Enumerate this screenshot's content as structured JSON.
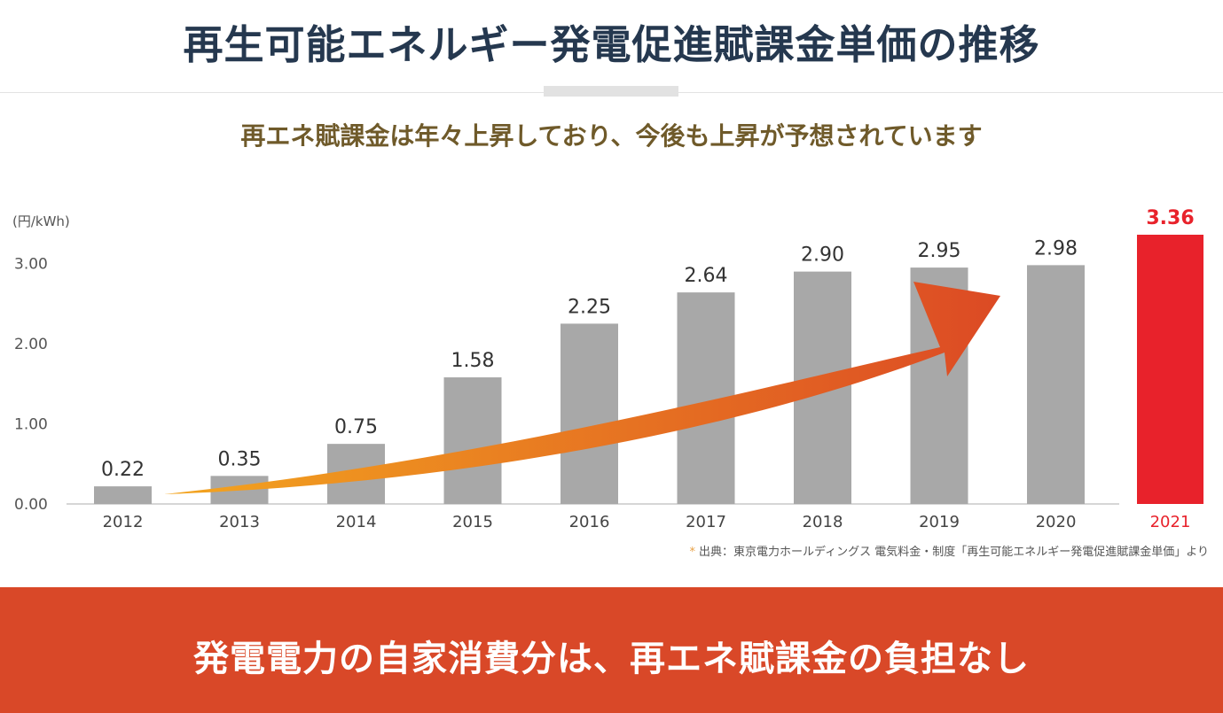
{
  "title": "再生可能エネルギー発電促進賦課金単価の推移",
  "subtitle": "再エネ賦課金は年々上昇しており、今後も上昇が予想されています",
  "source_mark": "*",
  "source_text": "出典：東京電力ホールディングス 電気料金・制度「再生可能エネルギー発電促進賦課金単価」より",
  "banner": "発電電力の自家消費分は、再エネ賦課金の負担なし",
  "colors": {
    "title": "#25384f",
    "subtitle": "#6f5a2a",
    "bar": "#a8a8a8",
    "highlight_bar": "#e8222b",
    "banner": "#d94828",
    "arrow_start": "#f3a51f",
    "arrow_end": "#dc4a24"
  },
  "chart_data": {
    "type": "bar",
    "unit_label": "(円/kWh)",
    "categories": [
      "2012",
      "2013",
      "2014",
      "2015",
      "2016",
      "2017",
      "2018",
      "2019",
      "2020",
      "2021"
    ],
    "values": [
      0.22,
      0.35,
      0.75,
      1.58,
      2.25,
      2.64,
      2.9,
      2.95,
      2.98,
      3.36
    ],
    "value_labels": [
      "0.22",
      "0.35",
      "0.75",
      "1.58",
      "2.25",
      "2.64",
      "2.90",
      "2.95",
      "2.98",
      "3.36"
    ],
    "highlight_category": "2021",
    "y_ticks": [
      "0.00",
      "1.00",
      "2.00",
      "3.00"
    ],
    "ylim": [
      0,
      3.36
    ],
    "grid": false,
    "annotation": "upward-trend-arrow"
  }
}
